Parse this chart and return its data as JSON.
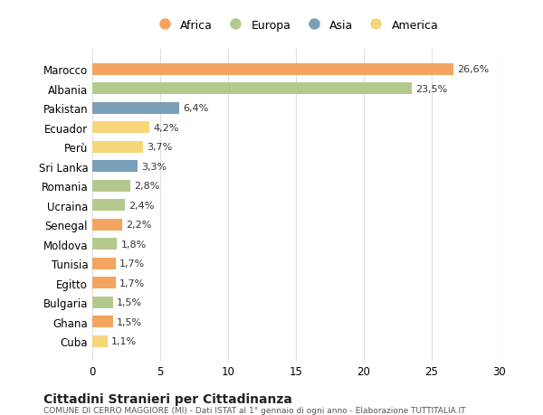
{
  "countries": [
    "Marocco",
    "Albania",
    "Pakistan",
    "Ecuador",
    "Perù",
    "Sri Lanka",
    "Romania",
    "Ucraina",
    "Senegal",
    "Moldova",
    "Tunisia",
    "Egitto",
    "Bulgaria",
    "Ghana",
    "Cuba"
  ],
  "values": [
    26.6,
    23.5,
    6.4,
    4.2,
    3.7,
    3.3,
    2.8,
    2.4,
    2.2,
    1.8,
    1.7,
    1.7,
    1.5,
    1.5,
    1.1
  ],
  "continents": [
    "Africa",
    "Europa",
    "Asia",
    "America",
    "America",
    "Asia",
    "Europa",
    "Europa",
    "Africa",
    "Europa",
    "Africa",
    "Africa",
    "Europa",
    "Africa",
    "America"
  ],
  "colors": {
    "Africa": "#F4A460",
    "Europa": "#B5C98E",
    "Asia": "#7B9EB9",
    "America": "#F5D67A"
  },
  "legend_order": [
    "Africa",
    "Europa",
    "Asia",
    "America"
  ],
  "xlim": [
    0,
    30
  ],
  "xticks": [
    0,
    5,
    10,
    15,
    20,
    25,
    30
  ],
  "title": "Cittadini Stranieri per Cittadinanza",
  "subtitle": "COMUNE DI CERRO MAGGIORE (MI) - Dati ISTAT al 1° gennaio di ogni anno - Elaborazione TUTTITALIA.IT",
  "bg_color": "#FFFFFF",
  "grid_color": "#E0E0E0"
}
